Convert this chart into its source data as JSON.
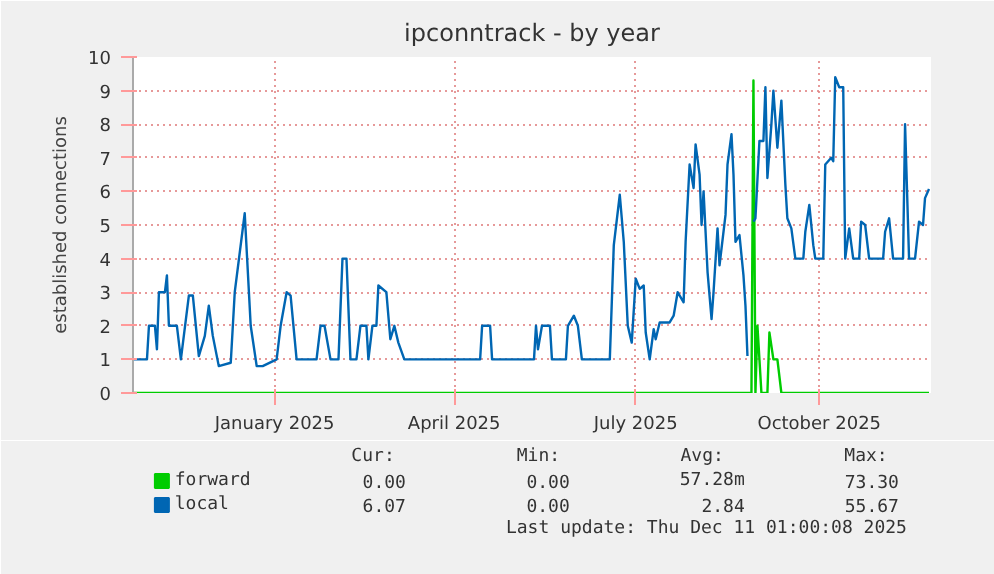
{
  "chart_data": {
    "type": "line",
    "title": "ipconntrack - by year",
    "ylabel": "established connections",
    "xlim": [
      "2024-11-06",
      "2025-12-11"
    ],
    "xticks": [
      {
        "value": "2025-01-16",
        "label": "January 2025"
      },
      {
        "value": "2025-04-16",
        "label": "April 2025"
      },
      {
        "value": "2025-07-16",
        "label": "July 2025"
      },
      {
        "value": "2025-10-16",
        "label": "October 2025"
      }
    ],
    "ylim": [
      0,
      10
    ],
    "yticks": [
      0,
      1,
      2,
      3,
      4,
      5,
      6,
      7,
      8,
      9,
      10
    ],
    "grid": true,
    "legend": "bottom left",
    "series": [
      {
        "name": "forward",
        "color": "#00cc00",
        "x": [
          "2024-11-06",
          "2025-09-12",
          "2025-09-13",
          "2025-09-14",
          "2025-09-15",
          "2025-09-17",
          "2025-09-20",
          "2025-09-21",
          "2025-09-23",
          "2025-09-25",
          "2025-09-27",
          "2025-12-10"
        ],
        "values": [
          0,
          0,
          9.3,
          0,
          2.0,
          0,
          0,
          1.8,
          1.0,
          1.0,
          0,
          0
        ]
      },
      {
        "name": "local",
        "color": "#0066b3",
        "x": [
          "2024-11-06",
          "2024-11-13",
          "2024-11-14",
          "2024-11-17",
          "2024-11-18",
          "2024-11-19",
          "2024-11-22",
          "2024-11-23",
          "2024-11-24",
          "2024-11-28",
          "2024-11-30",
          "2024-12-04",
          "2024-12-06",
          "2024-12-09",
          "2024-12-12",
          "2024-12-14",
          "2024-12-16",
          "2024-12-19",
          "2024-12-25",
          "2024-12-27",
          "2025-01-01",
          "2025-01-04",
          "2025-01-07",
          "2025-01-10",
          "2025-01-17",
          "2025-01-19",
          "2025-01-22",
          "2025-01-24",
          "2025-01-27",
          "2025-02-06",
          "2025-02-08",
          "2025-02-10",
          "2025-02-13",
          "2025-02-17",
          "2025-02-19",
          "2025-02-21",
          "2025-02-23",
          "2025-02-26",
          "2025-02-28",
          "2025-03-03",
          "2025-03-04",
          "2025-03-06",
          "2025-03-08",
          "2025-03-09",
          "2025-03-13",
          "2025-03-15",
          "2025-03-17",
          "2025-03-19",
          "2025-03-22",
          "2025-04-29",
          "2025-04-30",
          "2025-05-04",
          "2025-05-05",
          "2025-05-26",
          "2025-05-27",
          "2025-05-28",
          "2025-05-30",
          "2025-06-03",
          "2025-06-04",
          "2025-06-11",
          "2025-06-12",
          "2025-06-15",
          "2025-06-17",
          "2025-06-19",
          "2025-07-03",
          "2025-07-05",
          "2025-07-08",
          "2025-07-10",
          "2025-07-12",
          "2025-07-14",
          "2025-07-16",
          "2025-07-18",
          "2025-07-20",
          "2025-07-21",
          "2025-07-23",
          "2025-07-25",
          "2025-07-26",
          "2025-07-28",
          "2025-08-02",
          "2025-08-04",
          "2025-08-06",
          "2025-08-09",
          "2025-08-10",
          "2025-08-12",
          "2025-08-14",
          "2025-08-15",
          "2025-08-17",
          "2025-08-18",
          "2025-08-19",
          "2025-08-21",
          "2025-08-23",
          "2025-08-24",
          "2025-08-26",
          "2025-08-27",
          "2025-08-30",
          "2025-08-31",
          "2025-09-02",
          "2025-09-03",
          "2025-09-04",
          "2025-09-06",
          "2025-09-08",
          "2025-09-09",
          "2025-09-10",
          "2025-09-11",
          "2025-09-13",
          "2025-09-14",
          "2025-09-16",
          "2025-09-18",
          "2025-09-19",
          "2025-09-20",
          "2025-09-22",
          "2025-09-23",
          "2025-09-25",
          "2025-09-27",
          "2025-09-29",
          "2025-09-30",
          "2025-10-02",
          "2025-10-04",
          "2025-10-08",
          "2025-10-09",
          "2025-10-11",
          "2025-10-13",
          "2025-10-14",
          "2025-10-18",
          "2025-10-19",
          "2025-10-22",
          "2025-10-23",
          "2025-10-24",
          "2025-10-26",
          "2025-10-28",
          "2025-10-29",
          "2025-10-31",
          "2025-11-02",
          "2025-11-05",
          "2025-11-06",
          "2025-11-08",
          "2025-11-10",
          "2025-11-17",
          "2025-11-18",
          "2025-11-20",
          "2025-11-22",
          "2025-11-27",
          "2025-11-28",
          "2025-11-30",
          "2025-12-03",
          "2025-12-05",
          "2025-12-07",
          "2025-12-08",
          "2025-12-10"
        ],
        "values": [
          1.0,
          1.0,
          2.0,
          2.0,
          1.3,
          3.0,
          3.0,
          3.5,
          2.0,
          2.0,
          1.0,
          2.9,
          2.9,
          1.1,
          1.7,
          2.6,
          1.7,
          0.8,
          0.9,
          3.0,
          5.35,
          2.0,
          0.8,
          0.8,
          1.0,
          2.0,
          3.0,
          2.9,
          1.0,
          1.0,
          2.0,
          2.0,
          1.0,
          1.0,
          4.0,
          4.0,
          1.0,
          1.0,
          2.0,
          2.0,
          1.0,
          2.0,
          2.0,
          3.2,
          3.0,
          1.6,
          2.0,
          1.5,
          1.0,
          1.0,
          2.0,
          2.0,
          1.0,
          1.0,
          2.0,
          1.3,
          2.0,
          2.0,
          1.0,
          1.0,
          2.0,
          2.3,
          2.0,
          1.0,
          1.0,
          4.4,
          5.9,
          4.5,
          2.0,
          1.5,
          3.4,
          3.1,
          3.2,
          1.8,
          1.0,
          1.9,
          1.6,
          2.1,
          2.1,
          2.3,
          3.0,
          2.7,
          4.5,
          6.8,
          6.1,
          7.4,
          6.5,
          5.0,
          6.0,
          3.6,
          2.2,
          3.0,
          4.9,
          3.8,
          5.3,
          6.8,
          7.7,
          6.5,
          4.5,
          4.7,
          3.5,
          2.6,
          1.1,
          null,
          5.1,
          5.2,
          7.5,
          7.5,
          9.1,
          6.4,
          8.0,
          9.0,
          7.3,
          8.7,
          6.2,
          5.2,
          4.9,
          4.0,
          4.0,
          4.8,
          5.6,
          4.4,
          4.0,
          4.0,
          6.8,
          7.0,
          6.9,
          9.4,
          9.1,
          9.1,
          4.0,
          4.9,
          4.0,
          4.0,
          5.1,
          5.0,
          4.0,
          4.0,
          4.8,
          5.2,
          4.0,
          4.0,
          8.0,
          4.0,
          4.0,
          5.1,
          5.0,
          5.8,
          6.07
        ]
      }
    ],
    "annotations": [
      "Cur:",
      "Min:",
      "Avg:",
      "Max:",
      "0.00",
      "0.00",
      "57.28m",
      "73.30",
      "6.07",
      "0.00",
      "2.84",
      "55.67",
      "Last update: Thu Dec 11 01:00:08 2025"
    ]
  }
}
